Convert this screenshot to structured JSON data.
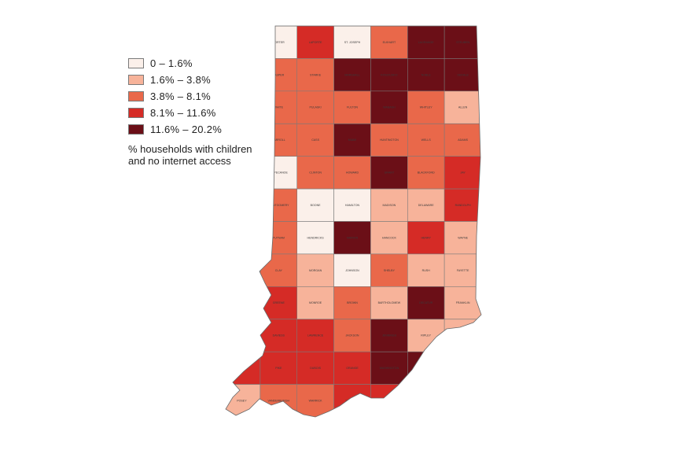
{
  "legend": {
    "items": [
      {
        "label": "0 – 1.6%",
        "color": "#fbf0ea"
      },
      {
        "label": "1.6% – 3.8%",
        "color": "#f7b39a"
      },
      {
        "label": "3.8% – 8.1%",
        "color": "#e9684a"
      },
      {
        "label": "8.1% – 11.6%",
        "color": "#d52b26"
      },
      {
        "label": "11.6% – 20.2%",
        "color": "#6b0f17"
      }
    ],
    "caption_line1": "% households with children",
    "caption_line2": "and no internet access"
  },
  "map": {
    "state": "Indiana",
    "county_rows": [
      [
        {
          "name": "LAKE",
          "bin": 0
        },
        {
          "name": "PORTER",
          "bin": 0
        },
        {
          "name": "LAPORTE",
          "bin": 3
        },
        {
          "name": "ST. JOSEPH",
          "bin": 0
        },
        {
          "name": "ELKHART",
          "bin": 2
        },
        {
          "name": "LAGRANGE",
          "bin": 4
        },
        {
          "name": "STEUBEN",
          "bin": 4
        }
      ],
      [
        {
          "name": "NEWTON",
          "bin": 2
        },
        {
          "name": "JASPER",
          "bin": 2
        },
        {
          "name": "STARKE",
          "bin": 2
        },
        {
          "name": "MARSHALL",
          "bin": 4
        },
        {
          "name": "KOSCIUSKO",
          "bin": 4
        },
        {
          "name": "NOBLE",
          "bin": 4
        },
        {
          "name": "DEKALB",
          "bin": 4
        }
      ],
      [
        {
          "name": "BENTON",
          "bin": 2
        },
        {
          "name": "WHITE",
          "bin": 2
        },
        {
          "name": "PULASKI",
          "bin": 2
        },
        {
          "name": "FULTON",
          "bin": 2
        },
        {
          "name": "WABASH",
          "bin": 4
        },
        {
          "name": "WHITLEY",
          "bin": 2
        },
        {
          "name": "ALLEN",
          "bin": 1
        }
      ],
      [
        {
          "name": "WARREN",
          "bin": 2
        },
        {
          "name": "CARROLL",
          "bin": 2
        },
        {
          "name": "CASS",
          "bin": 2
        },
        {
          "name": "MIAMI",
          "bin": 4
        },
        {
          "name": "HUNTINGTON",
          "bin": 2
        },
        {
          "name": "WELLS",
          "bin": 2
        },
        {
          "name": "ADAMS",
          "bin": 2
        }
      ],
      [
        {
          "name": "FOUNTAIN",
          "bin": 4
        },
        {
          "name": "TIPPECANOE",
          "bin": 0
        },
        {
          "name": "CLINTON",
          "bin": 2
        },
        {
          "name": "HOWARD",
          "bin": 2
        },
        {
          "name": "GRANT",
          "bin": 4
        },
        {
          "name": "BLACKFORD",
          "bin": 2
        },
        {
          "name": "JAY",
          "bin": 3
        }
      ],
      [
        {
          "name": "VERMILLION",
          "bin": 4
        },
        {
          "name": "MONTGOMERY",
          "bin": 2
        },
        {
          "name": "BOONE",
          "bin": 0
        },
        {
          "name": "HAMILTON",
          "bin": 0
        },
        {
          "name": "MADISON",
          "bin": 1
        },
        {
          "name": "DELAWARE",
          "bin": 1
        },
        {
          "name": "RANDOLPH",
          "bin": 3
        }
      ],
      [
        {
          "name": "PARKE",
          "bin": 4
        },
        {
          "name": "PUTNAM",
          "bin": 2
        },
        {
          "name": "HENDRICKS",
          "bin": 0
        },
        {
          "name": "MARION",
          "bin": 4
        },
        {
          "name": "HANCOCK",
          "bin": 1
        },
        {
          "name": "HENRY",
          "bin": 3
        },
        {
          "name": "WAYNE",
          "bin": 1
        }
      ],
      [
        {
          "name": "VIGO",
          "bin": 4
        },
        {
          "name": "CLAY",
          "bin": 2
        },
        {
          "name": "MORGAN",
          "bin": 1
        },
        {
          "name": "JOHNSON",
          "bin": 0
        },
        {
          "name": "SHELBY",
          "bin": 2
        },
        {
          "name": "RUSH",
          "bin": 1
        },
        {
          "name": "FAYETTE",
          "bin": 1
        }
      ],
      [
        {
          "name": "SULLIVAN",
          "bin": 4
        },
        {
          "name": "GREENE",
          "bin": 3
        },
        {
          "name": "MONROE",
          "bin": 1
        },
        {
          "name": "BROWN",
          "bin": 2
        },
        {
          "name": "BARTHOLOMEW",
          "bin": 1
        },
        {
          "name": "DECATUR",
          "bin": 4
        },
        {
          "name": "FRANKLIN",
          "bin": 1
        }
      ],
      [
        {
          "name": "KNOX",
          "bin": 4
        },
        {
          "name": "DAVIESS",
          "bin": 3
        },
        {
          "name": "LAWRENCE",
          "bin": 3
        },
        {
          "name": "JACKSON",
          "bin": 2
        },
        {
          "name": "JENNINGS",
          "bin": 4
        },
        {
          "name": "RIPLEY",
          "bin": 1
        },
        {
          "name": "DEARBORN",
          "bin": 1
        }
      ],
      [
        {
          "name": "GIBSON",
          "bin": 3
        },
        {
          "name": "PIKE",
          "bin": 3
        },
        {
          "name": "DUBOIS",
          "bin": 3
        },
        {
          "name": "ORANGE",
          "bin": 3
        },
        {
          "name": "WASHINGTON",
          "bin": 4
        },
        {
          "name": "CLARK",
          "bin": 4
        },
        {
          "name": "SWITZERLAND",
          "bin": 1
        }
      ],
      [
        {
          "name": "POSEY",
          "bin": 1
        },
        {
          "name": "VANDERBURGH",
          "bin": 2
        },
        {
          "name": "WARRICK",
          "bin": 2
        },
        {
          "name": "SPENCER",
          "bin": 3
        },
        {
          "name": "PERRY",
          "bin": 3
        },
        {
          "name": "HARRISON",
          "bin": 4
        },
        {
          "name": "FLOYD",
          "bin": 4
        }
      ]
    ]
  }
}
